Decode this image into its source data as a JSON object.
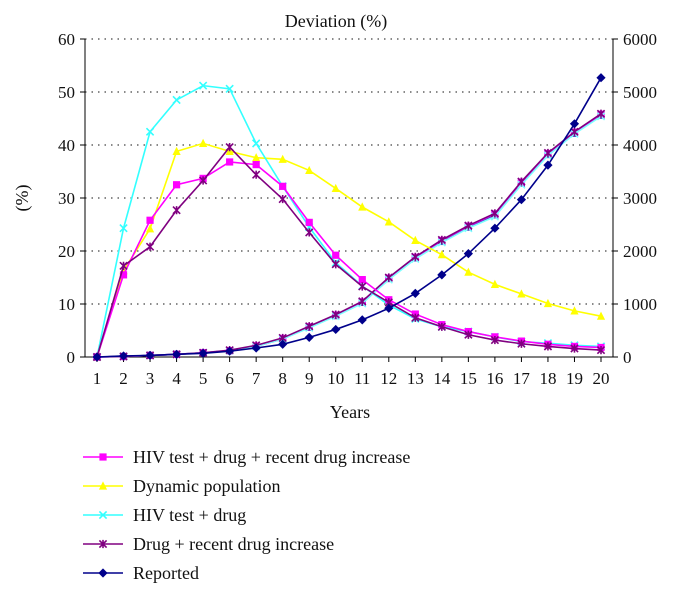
{
  "chart_data": {
    "type": "line",
    "title": "Deviation (%)",
    "xlabel": "Years",
    "ylabel": "(%)",
    "x": [
      1,
      2,
      3,
      4,
      5,
      6,
      7,
      8,
      9,
      10,
      11,
      12,
      13,
      14,
      15,
      16,
      17,
      18,
      19,
      20
    ],
    "ylim": [
      0,
      60
    ],
    "y_ticks": [
      0,
      10,
      20,
      30,
      40,
      50,
      60
    ],
    "y2lim": [
      0,
      6000
    ],
    "y2_ticks": [
      0,
      1000,
      2000,
      3000,
      4000,
      5000,
      6000
    ],
    "grid": "horizontal-dotted",
    "legend_position": "bottom",
    "series": [
      {
        "name": "HIV test + drug + recent drug increase",
        "color": "#ff00ff",
        "marker": "square",
        "axis": "left",
        "values": [
          0,
          15.5,
          25.8,
          32.5,
          33.7,
          36.8,
          36.3,
          32.2,
          25.4,
          19.2,
          14.6,
          10.8,
          8.1,
          6.1,
          4.8,
          3.8,
          3.0,
          2.4,
          2.0,
          1.8
        ]
      },
      {
        "name": "Dynamic population",
        "color": "#ffff00",
        "marker": "triangle",
        "axis": "left",
        "values": [
          0,
          16.3,
          24.2,
          38.8,
          40.3,
          38.8,
          37.6,
          37.3,
          35.2,
          31.8,
          28.3,
          25.5,
          22.0,
          19.3,
          16.0,
          13.7,
          11.9,
          10.1,
          8.7,
          7.7
        ]
      },
      {
        "name": "HIV test + drug",
        "color": "#33ffff",
        "marker": "x",
        "axis": "left",
        "values": [
          0,
          24.3,
          42.5,
          48.5,
          51.2,
          50.6,
          40.3,
          32.2,
          24.5,
          17.8,
          13.4,
          9.8,
          7.2,
          5.7,
          4.8,
          3.8,
          2.9,
          2.6,
          2.2,
          2.0
        ]
      },
      {
        "name": "Drug + recent drug increase",
        "color": "#800080",
        "marker": "star",
        "axis": "left",
        "values": [
          0,
          17.2,
          20.8,
          27.7,
          33.3,
          39.6,
          34.4,
          29.8,
          23.5,
          17.5,
          13.3,
          10.3,
          7.4,
          5.7,
          4.2,
          3.2,
          2.5,
          2.0,
          1.6,
          1.3
        ]
      },
      {
        "name": "Reported",
        "color": "#00008b",
        "marker": "diamond",
        "axis": "right",
        "values": [
          0,
          20,
          30,
          50,
          70,
          110,
          170,
          240,
          370,
          520,
          700,
          920,
          1200,
          1550,
          1950,
          2430,
          2970,
          3620,
          4400,
          5270
        ]
      },
      {
        "name": "",
        "color": "#4040c0",
        "marker": "square",
        "axis": "right",
        "values": [
          0,
          10,
          30,
          50,
          80,
          120,
          200,
          340,
          560,
          780,
          1030,
          1480,
          1870,
          2180,
          2450,
          2680,
          3280,
          3820,
          4220,
          4560
        ]
      },
      {
        "name": "",
        "color": "#ff00ff",
        "marker": "square",
        "axis": "right",
        "values": [
          0,
          10,
          30,
          50,
          80,
          120,
          210,
          350,
          570,
          790,
          1040,
          1490,
          1880,
          2200,
          2470,
          2700,
          3300,
          3840,
          4240,
          4580
        ]
      },
      {
        "name": "",
        "color": "#7fffff",
        "marker": "x",
        "axis": "right",
        "values": [
          0,
          10,
          30,
          50,
          80,
          120,
          200,
          340,
          550,
          770,
          1010,
          1460,
          1850,
          2160,
          2430,
          2650,
          3250,
          3800,
          4210,
          4540
        ]
      },
      {
        "name": "",
        "color": "#800080",
        "marker": "star",
        "axis": "right",
        "values": [
          0,
          10,
          30,
          50,
          80,
          130,
          220,
          360,
          580,
          800,
          1050,
          1500,
          1890,
          2210,
          2480,
          2710,
          3310,
          3850,
          4250,
          4590
        ]
      }
    ]
  }
}
